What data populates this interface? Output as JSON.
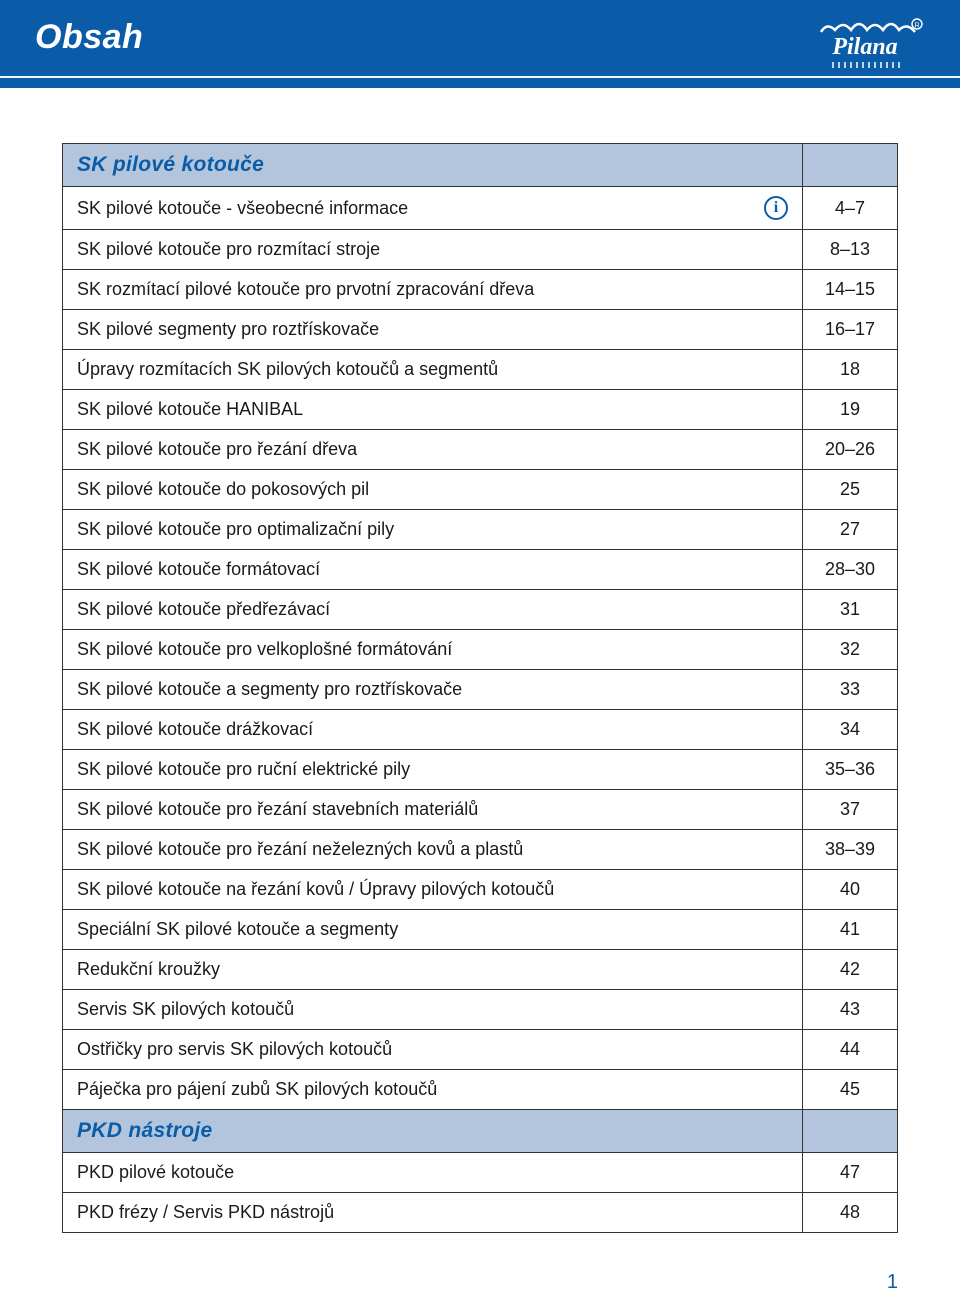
{
  "header": {
    "title": "Obsah",
    "logo_text": "Pilana"
  },
  "sections": [
    {
      "heading": "SK pilové kotouče",
      "rows": [
        {
          "label": "SK pilové kotouče - všeobecné informace",
          "page": "4–7",
          "info_icon": true
        },
        {
          "label": "SK pilové kotouče pro rozmítací stroje",
          "page": "8–13"
        },
        {
          "label": "SK rozmítací pilové kotouče pro prvotní zpracování dřeva",
          "page": "14–15"
        },
        {
          "label": "SK pilové segmenty pro roztřískovače",
          "page": "16–17"
        },
        {
          "label": "Úpravy rozmítacích SK pilových kotoučů a segmentů",
          "page": "18"
        },
        {
          "label": "SK pilové kotouče HANIBAL",
          "page": "19"
        },
        {
          "label": "SK pilové kotouče pro řezání dřeva",
          "page": "20–26"
        },
        {
          "label": "SK pilové kotouče do pokosových pil",
          "page": "25"
        },
        {
          "label": "SK pilové kotouče pro optimalizační pily",
          "page": "27"
        },
        {
          "label": "SK pilové kotouče formátovací",
          "page": "28–30"
        },
        {
          "label": "SK pilové kotouče předřezávací",
          "page": "31"
        },
        {
          "label": "SK pilové kotouče pro velkoplošné formátování",
          "page": "32"
        },
        {
          "label": "SK pilové kotouče a segmenty pro roztřískovače",
          "page": "33"
        },
        {
          "label": "SK pilové kotouče drážkovací",
          "page": "34"
        },
        {
          "label": "SK pilové kotouče pro ruční elektrické pily",
          "page": "35–36"
        },
        {
          "label": "SK pilové kotouče pro řezání stavebních materiálů",
          "page": "37"
        },
        {
          "label": "SK pilové kotouče pro řezání neželezných kovů a plastů",
          "page": "38–39"
        },
        {
          "label": "SK pilové kotouče na řezání kovů / Úpravy pilových kotoučů",
          "page": "40"
        },
        {
          "label": "Speciální SK pilové kotouče a segmenty",
          "page": "41"
        },
        {
          "label": "Redukční kroužky",
          "page": "42"
        },
        {
          "label": "Servis SK pilových kotoučů",
          "page": "43"
        },
        {
          "label": "Ostřičky pro servis SK pilových kotoučů",
          "page": "44"
        },
        {
          "label": "Páječka pro pájení zubů SK pilových kotoučů",
          "page": "45"
        }
      ]
    },
    {
      "heading": "PKD nástroje",
      "rows": [
        {
          "label": "PKD pilové kotouče",
          "page": "47"
        },
        {
          "label": "PKD frézy / Servis PKD nástrojů",
          "page": "48"
        }
      ]
    }
  ],
  "page_number": "1",
  "colors": {
    "header_bg": "#0a5ca8",
    "section_bg": "#b3c5dd",
    "accent": "#0a5ca8",
    "border": "#333333",
    "text": "#1a1a1a"
  }
}
